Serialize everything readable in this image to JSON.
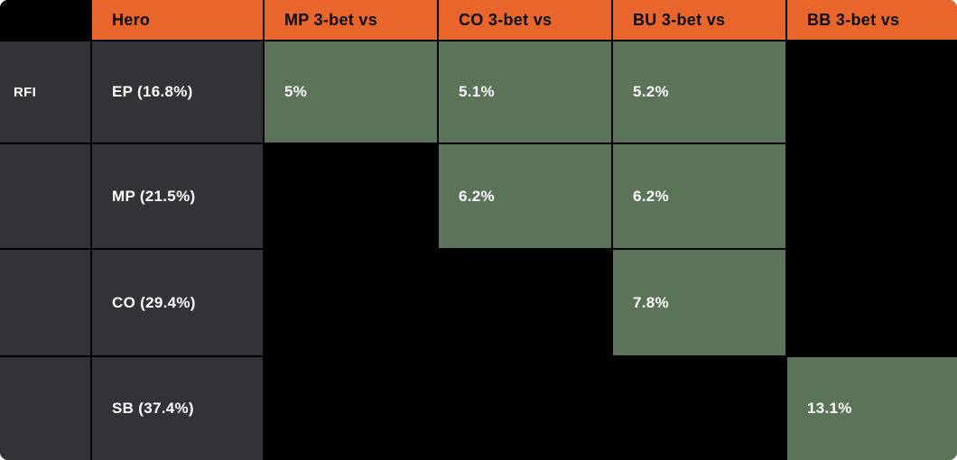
{
  "colors": {
    "header_orange": "#E8662C",
    "filled_green": "#5B7358",
    "row_dark_gray": "#323338",
    "empty_black": "#000000",
    "header_text": "#0d0d0d",
    "cell_text": "#ffffff"
  },
  "chart_data": {
    "type": "table",
    "columns": [
      "",
      "Hero",
      "MP 3-bet vs",
      "CO 3-bet vs",
      "BU 3-bet vs",
      "BB 3-bet vs"
    ],
    "rows": [
      [
        "RFI",
        "EP (16.8%)",
        "5%",
        "5.1%",
        "5.2%",
        ""
      ],
      [
        "",
        "MP (21.5%)",
        "",
        "6.2%",
        "6.2%",
        ""
      ],
      [
        "",
        "CO (29.4%)",
        "",
        "",
        "7.8%",
        ""
      ],
      [
        "",
        "SB (37.4%)",
        "",
        "",
        "",
        "13.1%"
      ]
    ],
    "notes_layout": "green cells contain values; black cells are empty"
  }
}
